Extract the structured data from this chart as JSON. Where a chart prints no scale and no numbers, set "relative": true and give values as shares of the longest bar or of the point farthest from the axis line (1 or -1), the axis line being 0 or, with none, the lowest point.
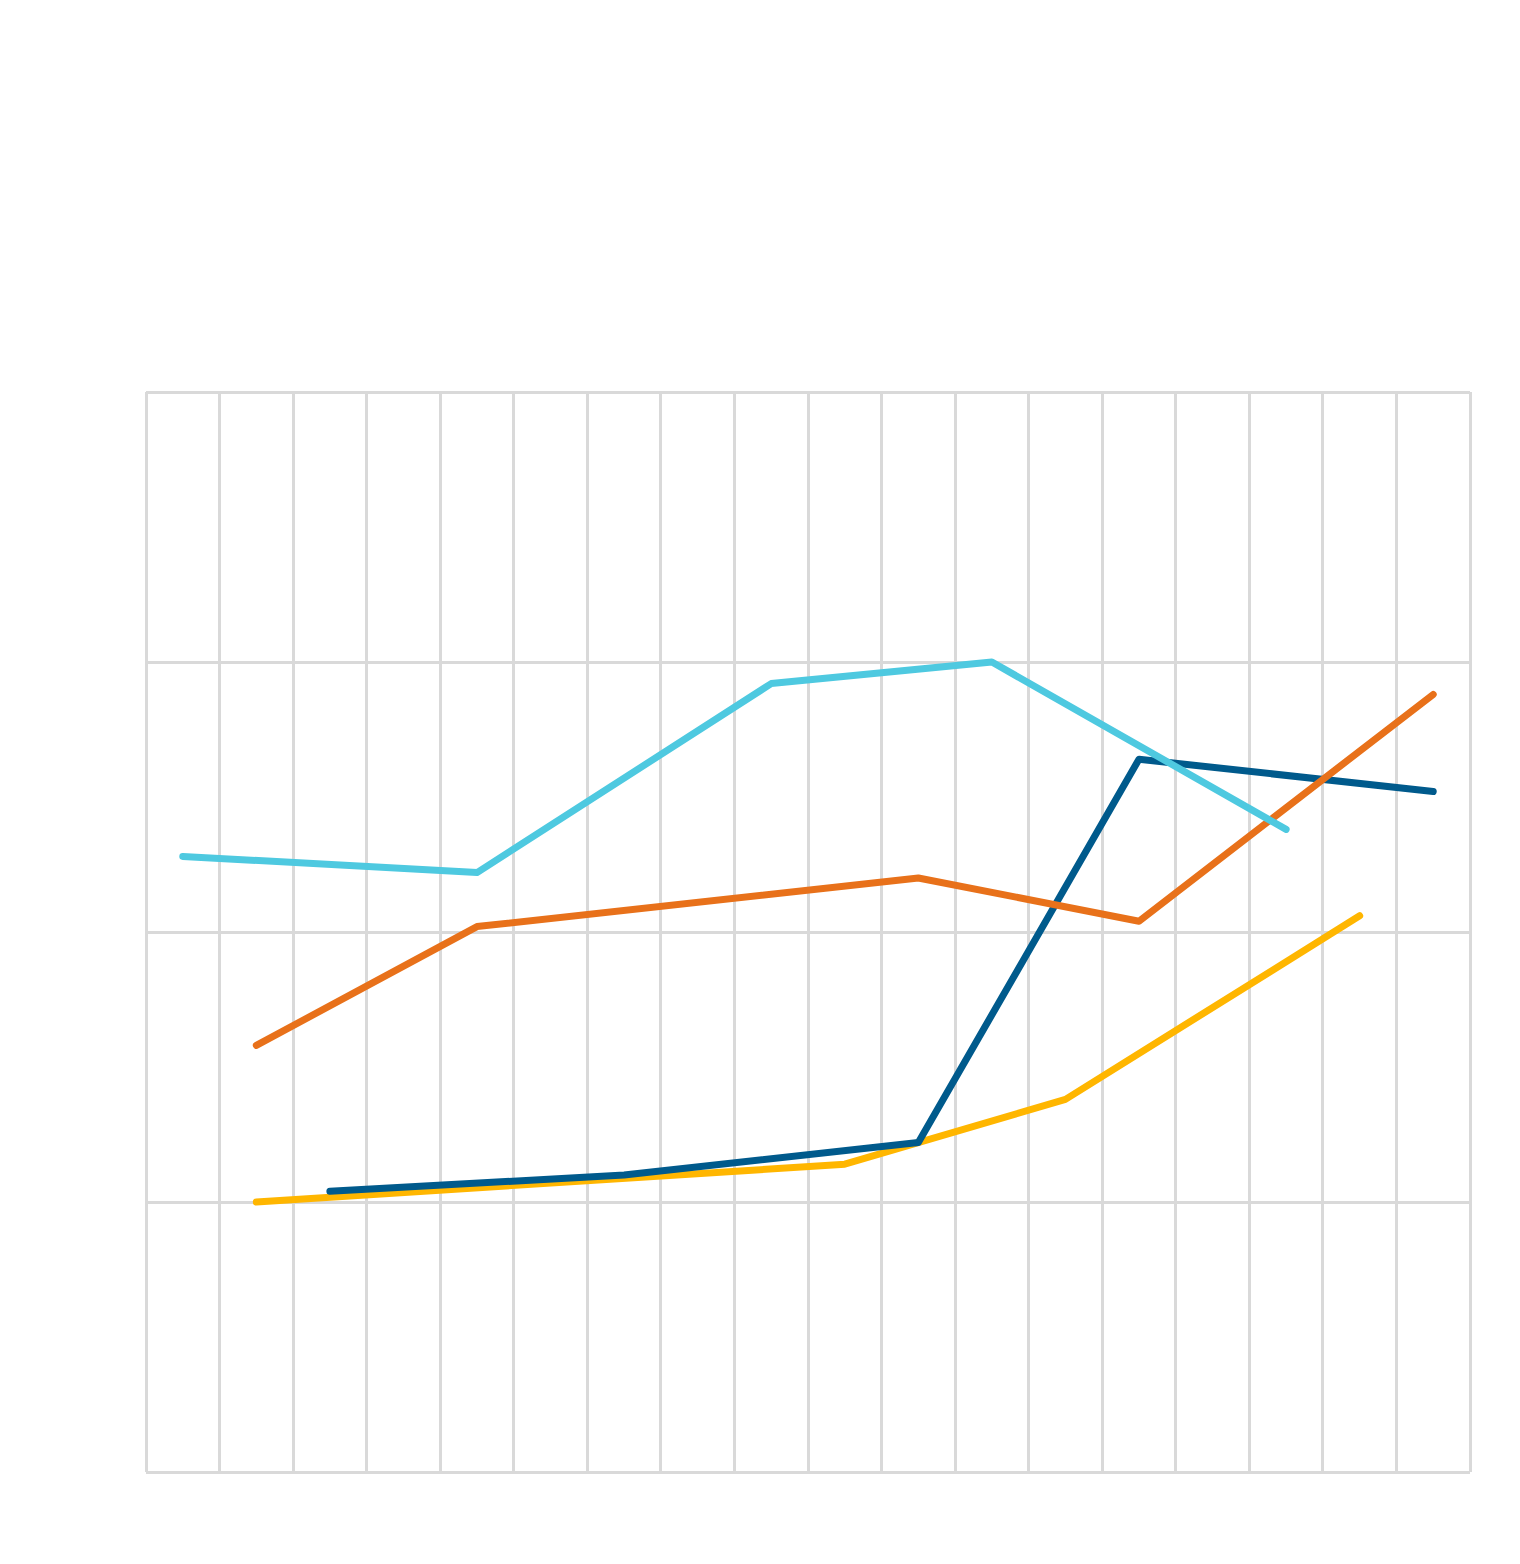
{
  "chart_data": {
    "type": "line",
    "relative": true,
    "grid": true,
    "marker": "none",
    "categories": [
      null,
      null,
      null,
      null,
      null,
      null,
      null,
      null,
      null,
      null,
      null,
      null,
      null,
      null,
      null,
      null,
      null,
      null
    ],
    "series": [
      {
        "color": "#4ec9e0",
        "values": [
          0.64,
          null,
          null,
          null,
          0.61,
          null,
          null,
          null,
          0.96,
          null,
          null,
          1,
          null,
          null,
          null,
          0.69,
          null,
          null
        ]
      },
      {
        "color": "#e8711a",
        "values": [
          null,
          0.29,
          null,
          null,
          0.51,
          null,
          null,
          null,
          null,
          null,
          0.6,
          null,
          null,
          0.52,
          null,
          null,
          null,
          0.94
        ]
      },
      {
        "color": "#005a8c",
        "values": [
          null,
          null,
          0.02,
          null,
          null,
          null,
          0.05,
          null,
          null,
          null,
          0.11,
          null,
          null,
          0.82,
          null,
          null,
          null,
          0.76
        ]
      },
      {
        "color": "#ffb600",
        "values": [
          null,
          0,
          null,
          null,
          null,
          null,
          null,
          null,
          null,
          0.07,
          null,
          null,
          0.19,
          null,
          null,
          null,
          0.53,
          null
        ]
      }
    ]
  }
}
